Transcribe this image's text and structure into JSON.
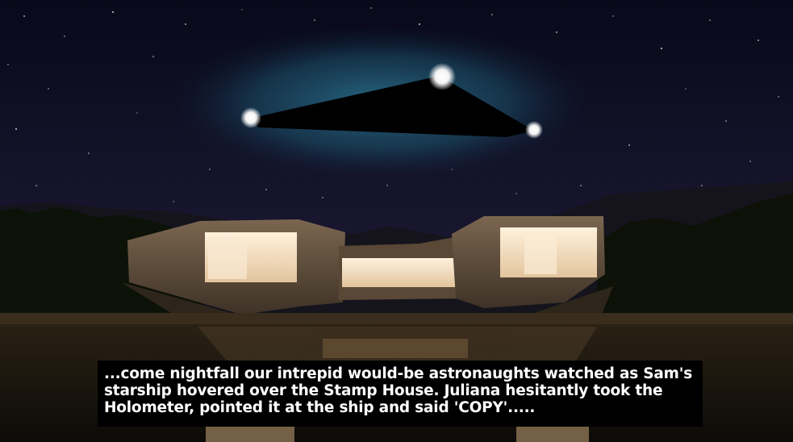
{
  "caption": {
    "text": "...come nightfall our intrepid would-be astronaughts watched as Sam's starship hovered over the Stamp House. Juliana hesitantly took the Holometer, pointed it at the ship and said 'COPY'....."
  },
  "colors": {
    "sky_top": "#0a0b1d",
    "sky_bottom": "#241f3f",
    "glow": "#1f5d7a",
    "ship": "#000000",
    "window_light": "#f3dfc4",
    "concrete": "#6b5742",
    "water": "#1a1610",
    "caption_bg": "#000000",
    "caption_text": "#ffffff"
  }
}
